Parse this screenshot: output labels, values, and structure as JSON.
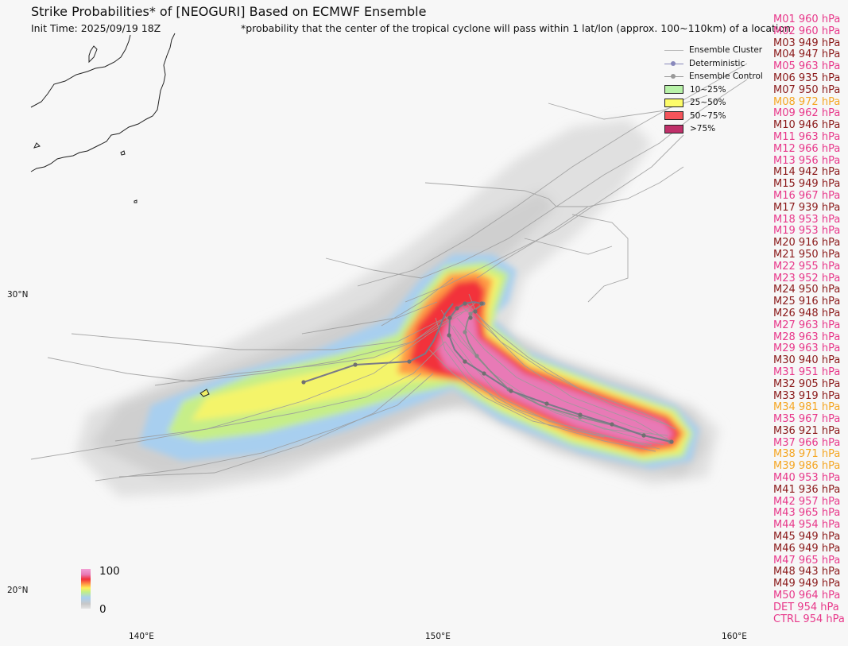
{
  "header": {
    "title": "Strike Probabilities* of [NEOGURI] Based on ECMWF Ensemble",
    "init_time": "Init Time: 2025/09/19 18Z",
    "footnote": "*probability that the center of the tropical cyclone will pass within 1 lat/lon (approx. 100~110km) of a location"
  },
  "legend": [
    {
      "label": "Ensemble Cluster",
      "kind": "line",
      "color": "#bbbbbb"
    },
    {
      "label": "Deterministic",
      "kind": "line-dot",
      "color": "#8888bb"
    },
    {
      "label": "Ensemble Control",
      "kind": "line-dot",
      "color": "#999999"
    },
    {
      "label": "10~25%",
      "kind": "box",
      "color": "#b8f2a8"
    },
    {
      "label": "25~50%",
      "kind": "box",
      "color": "#fdfc6a"
    },
    {
      "label": "50~75%",
      "kind": "box",
      "color": "#f4545a"
    },
    {
      "label": ">75%",
      "kind": "box",
      "color": "#c0306a"
    }
  ],
  "axes": {
    "lon_labels": [
      "140°E",
      "150°E",
      "160°E"
    ],
    "lat_labels": [
      "30°N",
      "20°N"
    ]
  },
  "colorbar": {
    "max_label": "100",
    "min_label": "0"
  },
  "colors": {
    "pink": "#e8388a",
    "dark_red": "#8b1a1a",
    "orange": "#f5a623"
  },
  "members": [
    {
      "label": "M01 960 hPa",
      "color": "#e8388a"
    },
    {
      "label": "M02 960 hPa",
      "color": "#e8388a"
    },
    {
      "label": "M03 949 hPa",
      "color": "#8b1a1a"
    },
    {
      "label": "M04 947 hPa",
      "color": "#8b1a1a"
    },
    {
      "label": "M05 963 hPa",
      "color": "#e8388a"
    },
    {
      "label": "M06 935 hPa",
      "color": "#8b1a1a"
    },
    {
      "label": "M07 950 hPa",
      "color": "#8b1a1a"
    },
    {
      "label": "M08 972 hPa",
      "color": "#f5a623"
    },
    {
      "label": "M09 962 hPa",
      "color": "#e8388a"
    },
    {
      "label": "M10 946 hPa",
      "color": "#8b1a1a"
    },
    {
      "label": "M11 963 hPa",
      "color": "#e8388a"
    },
    {
      "label": "M12 966 hPa",
      "color": "#e8388a"
    },
    {
      "label": "M13 956 hPa",
      "color": "#e8388a"
    },
    {
      "label": "M14 942 hPa",
      "color": "#8b1a1a"
    },
    {
      "label": "M15 949 hPa",
      "color": "#8b1a1a"
    },
    {
      "label": "M16 967 hPa",
      "color": "#e8388a"
    },
    {
      "label": "M17 939 hPa",
      "color": "#8b1a1a"
    },
    {
      "label": "M18 953 hPa",
      "color": "#e8388a"
    },
    {
      "label": "M19 953 hPa",
      "color": "#e8388a"
    },
    {
      "label": "M20 916 hPa",
      "color": "#8b1a1a"
    },
    {
      "label": "M21 950 hPa",
      "color": "#8b1a1a"
    },
    {
      "label": "M22 955 hPa",
      "color": "#e8388a"
    },
    {
      "label": "M23 952 hPa",
      "color": "#e8388a"
    },
    {
      "label": "M24 950 hPa",
      "color": "#8b1a1a"
    },
    {
      "label": "M25 916 hPa",
      "color": "#8b1a1a"
    },
    {
      "label": "M26 948 hPa",
      "color": "#8b1a1a"
    },
    {
      "label": "M27 963 hPa",
      "color": "#e8388a"
    },
    {
      "label": "M28 963 hPa",
      "color": "#e8388a"
    },
    {
      "label": "M29 963 hPa",
      "color": "#e8388a"
    },
    {
      "label": "M30 940 hPa",
      "color": "#8b1a1a"
    },
    {
      "label": "M31 951 hPa",
      "color": "#e8388a"
    },
    {
      "label": "M32 905 hPa",
      "color": "#8b1a1a"
    },
    {
      "label": "M33 919 hPa",
      "color": "#8b1a1a"
    },
    {
      "label": "M34 981 hPa",
      "color": "#f5a623"
    },
    {
      "label": "M35 967 hPa",
      "color": "#e8388a"
    },
    {
      "label": "M36 921 hPa",
      "color": "#8b1a1a"
    },
    {
      "label": "M37 966 hPa",
      "color": "#e8388a"
    },
    {
      "label": "M38 971 hPa",
      "color": "#f5a623"
    },
    {
      "label": "M39 986 hPa",
      "color": "#f5a623"
    },
    {
      "label": "M40 953 hPa",
      "color": "#e8388a"
    },
    {
      "label": "M41 936 hPa",
      "color": "#8b1a1a"
    },
    {
      "label": "M42 957 hPa",
      "color": "#e8388a"
    },
    {
      "label": "M43 965 hPa",
      "color": "#e8388a"
    },
    {
      "label": "M44 954 hPa",
      "color": "#e8388a"
    },
    {
      "label": "M45 949 hPa",
      "color": "#8b1a1a"
    },
    {
      "label": "M46 949 hPa",
      "color": "#8b1a1a"
    },
    {
      "label": "M47 965 hPa",
      "color": "#e8388a"
    },
    {
      "label": "M48 943 hPa",
      "color": "#8b1a1a"
    },
    {
      "label": "M49 949 hPa",
      "color": "#8b1a1a"
    },
    {
      "label": "M50 964 hPa",
      "color": "#e8388a"
    },
    {
      "label": "DET 954 hPa",
      "color": "#e8388a"
    },
    {
      "label": "CTRL 954 hPa",
      "color": "#e8388a"
    }
  ]
}
